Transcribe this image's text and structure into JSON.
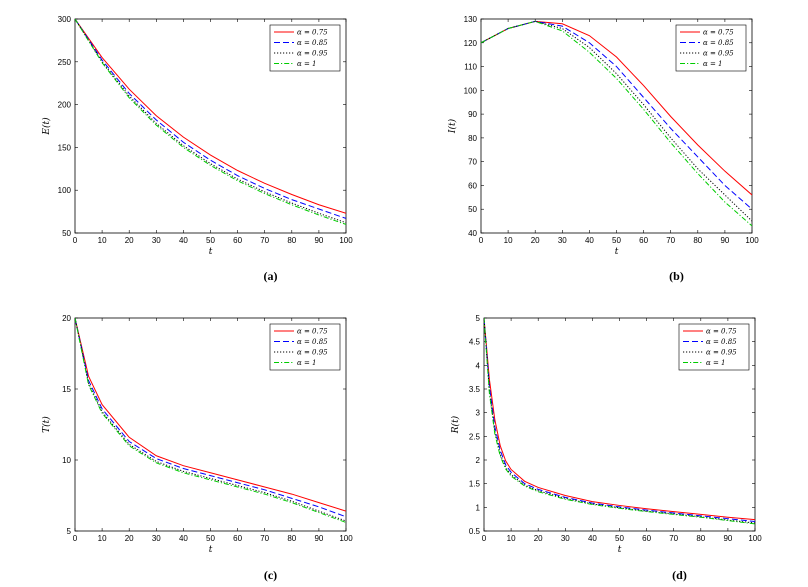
{
  "chart_data": [
    {
      "type": "line",
      "panel": "(a)",
      "xlabel": "t",
      "ylabel": "E(t)",
      "xlim": [
        0,
        100
      ],
      "ylim": [
        50,
        300
      ],
      "xticks": [
        0,
        10,
        20,
        30,
        40,
        50,
        60,
        70,
        80,
        90,
        100
      ],
      "yticks": [
        50,
        100,
        150,
        200,
        250,
        300
      ],
      "legend_position": "top-right",
      "x": [
        0,
        10,
        20,
        30,
        40,
        50,
        60,
        70,
        80,
        90,
        100
      ],
      "series": [
        {
          "name": "α = 0.75",
          "color": "#ff0000",
          "dash": "solid",
          "values": [
            300,
            255,
            218,
            187,
            162,
            141,
            123,
            108,
            95,
            83,
            73
          ]
        },
        {
          "name": "α = 0.85",
          "color": "#0000ff",
          "dash": "dashed",
          "values": [
            300,
            252,
            213,
            182,
            156,
            135,
            117,
            102,
            89,
            78,
            67
          ]
        },
        {
          "name": "α = 0.95",
          "color": "#000000",
          "dash": "dotted",
          "values": [
            300,
            250,
            210,
            178,
            152,
            131,
            113,
            98,
            85,
            73,
            62
          ]
        },
        {
          "name": "α = 1",
          "color": "#00cc00",
          "dash": "dashdot",
          "values": [
            300,
            249,
            208,
            176,
            150,
            129,
            111,
            96,
            83,
            71,
            60
          ]
        }
      ]
    },
    {
      "type": "line",
      "panel": "(b)",
      "xlabel": "t",
      "ylabel": "I(t)",
      "xlim": [
        0,
        100
      ],
      "ylim": [
        40,
        130
      ],
      "xticks": [
        0,
        10,
        20,
        30,
        40,
        50,
        60,
        70,
        80,
        90,
        100
      ],
      "yticks": [
        40,
        50,
        60,
        70,
        80,
        90,
        100,
        110,
        120,
        130
      ],
      "legend_position": "top-right",
      "x": [
        0,
        10,
        20,
        30,
        40,
        50,
        60,
        70,
        80,
        90,
        100
      ],
      "series": [
        {
          "name": "α = 0.75",
          "color": "#ff0000",
          "dash": "solid",
          "values": [
            120,
            126,
            129,
            128,
            123,
            114,
            102,
            89,
            77,
            66,
            56
          ]
        },
        {
          "name": "α = 0.85",
          "color": "#0000ff",
          "dash": "dashed",
          "values": [
            120,
            126,
            129,
            127,
            120,
            110,
            97,
            84,
            72,
            60,
            50
          ]
        },
        {
          "name": "α = 0.95",
          "color": "#000000",
          "dash": "dotted",
          "values": [
            120,
            126,
            129,
            126,
            118,
            107,
            94,
            80,
            67,
            56,
            45
          ]
        },
        {
          "name": "α = 1",
          "color": "#00cc00",
          "dash": "dashdot",
          "values": [
            120,
            126,
            129,
            125,
            116,
            105,
            92,
            78,
            65,
            53,
            43
          ]
        }
      ]
    },
    {
      "type": "line",
      "panel": "(c)",
      "xlabel": "t",
      "ylabel": "T(t)",
      "xlim": [
        0,
        100
      ],
      "ylim": [
        5,
        20
      ],
      "xticks": [
        0,
        10,
        20,
        30,
        40,
        50,
        60,
        70,
        80,
        90,
        100
      ],
      "yticks": [
        5,
        10,
        15,
        20
      ],
      "legend_position": "top-right",
      "x": [
        0,
        5,
        10,
        20,
        30,
        40,
        50,
        60,
        70,
        80,
        90,
        100
      ],
      "series": [
        {
          "name": "α = 0.75",
          "color": "#ff0000",
          "dash": "solid",
          "values": [
            20,
            15.9,
            13.9,
            11.6,
            10.3,
            9.6,
            9.1,
            8.6,
            8.1,
            7.6,
            7.0,
            6.4
          ]
        },
        {
          "name": "α = 0.85",
          "color": "#0000ff",
          "dash": "dashed",
          "values": [
            20,
            15.6,
            13.6,
            11.3,
            10.1,
            9.4,
            8.9,
            8.4,
            7.9,
            7.3,
            6.7,
            6.0
          ]
        },
        {
          "name": "α = 0.95",
          "color": "#000000",
          "dash": "dotted",
          "values": [
            20,
            15.4,
            13.4,
            11.1,
            9.9,
            9.2,
            8.7,
            8.2,
            7.7,
            7.1,
            6.4,
            5.7
          ]
        },
        {
          "name": "α = 1",
          "color": "#00cc00",
          "dash": "dashdot",
          "values": [
            20,
            15.3,
            13.3,
            11.0,
            9.8,
            9.1,
            8.6,
            8.1,
            7.6,
            7.0,
            6.3,
            5.6
          ]
        }
      ]
    },
    {
      "type": "line",
      "panel": "(d)",
      "xlabel": "t",
      "ylabel": "R(t)",
      "xlim": [
        0,
        100
      ],
      "ylim": [
        0.5,
        5
      ],
      "xticks": [
        0,
        10,
        20,
        30,
        40,
        50,
        60,
        70,
        80,
        90,
        100
      ],
      "yticks": [
        0.5,
        1,
        1.5,
        2,
        2.5,
        3,
        3.5,
        4,
        4.5,
        5
      ],
      "legend_position": "top-right",
      "x": [
        0,
        2,
        4,
        6,
        8,
        10,
        15,
        20,
        30,
        40,
        50,
        60,
        70,
        80,
        90,
        100
      ],
      "series": [
        {
          "name": "α = 0.75",
          "color": "#ff0000",
          "dash": "solid",
          "values": [
            5,
            3.7,
            2.85,
            2.3,
            1.98,
            1.8,
            1.55,
            1.42,
            1.25,
            1.12,
            1.04,
            0.97,
            0.91,
            0.85,
            0.79,
            0.74
          ]
        },
        {
          "name": "α = 0.85",
          "color": "#0000ff",
          "dash": "dashed",
          "values": [
            5,
            3.55,
            2.7,
            2.2,
            1.9,
            1.74,
            1.5,
            1.38,
            1.21,
            1.09,
            1.01,
            0.94,
            0.88,
            0.82,
            0.76,
            0.7
          ]
        },
        {
          "name": "α = 0.95",
          "color": "#000000",
          "dash": "dotted",
          "values": [
            5,
            3.45,
            2.6,
            2.12,
            1.84,
            1.69,
            1.47,
            1.35,
            1.19,
            1.07,
            0.99,
            0.92,
            0.86,
            0.8,
            0.73,
            0.67
          ]
        },
        {
          "name": "α = 1",
          "color": "#00cc00",
          "dash": "dashdot",
          "values": [
            5,
            3.4,
            2.55,
            2.08,
            1.81,
            1.66,
            1.45,
            1.33,
            1.17,
            1.06,
            0.98,
            0.91,
            0.85,
            0.79,
            0.72,
            0.65
          ]
        }
      ]
    }
  ]
}
